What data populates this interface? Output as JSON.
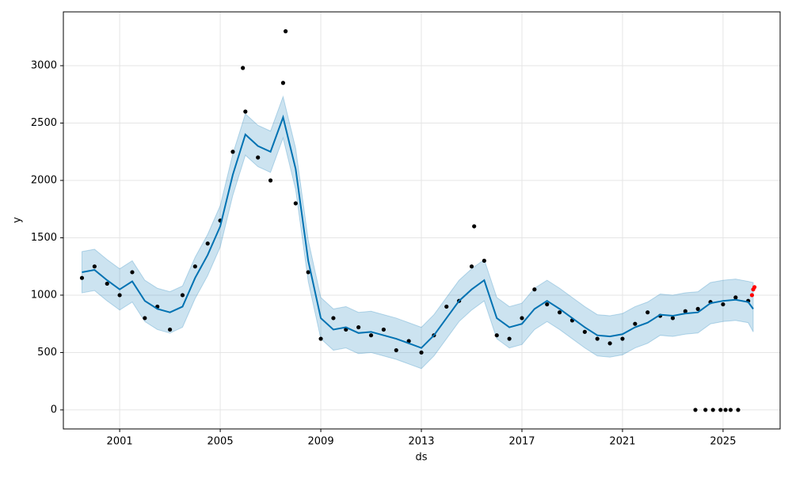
{
  "chart_data": {
    "type": "forecast",
    "x_label": "ds",
    "y_label": "y",
    "xlim": [
      1998.76,
      2027.27
    ],
    "ylim": [
      -166,
      3469
    ],
    "xticks": [
      2001,
      2005,
      2009,
      2013,
      2017,
      2021,
      2025
    ],
    "yticks": [
      0,
      500,
      1000,
      1500,
      2000,
      2500,
      3000
    ],
    "grid": true,
    "observations": {
      "color": "#000000",
      "x": [
        1999.5,
        2000.0,
        2000.5,
        2001.0,
        2001.5,
        2002.0,
        2002.5,
        2003.0,
        2003.5,
        2004.0,
        2004.5,
        2005.0,
        2005.5,
        2006.0,
        2006.5,
        2007.0,
        2007.5,
        2008.0,
        2008.5,
        2009.0,
        2009.5,
        2010.0,
        2010.5,
        2011.0,
        2011.5,
        2012.0,
        2012.5,
        2013.0,
        2013.5,
        2014.0,
        2014.5,
        2015.0,
        2015.5,
        2016.0,
        2016.5,
        2017.0,
        2017.5,
        2018.0,
        2018.5,
        2019.0,
        2019.5,
        2020.0,
        2020.5,
        2021.0,
        2021.5,
        2022.0,
        2022.5,
        2023.0,
        2023.5,
        2024.0,
        2024.5,
        2025.0,
        2025.5,
        2026.0,
        2007.6,
        2015.1,
        2005.9,
        2023.9,
        2024.3,
        2024.6,
        2024.9,
        2025.1,
        2025.3,
        2025.6
      ],
      "values": [
        1150,
        1250,
        1100,
        1000,
        1200,
        800,
        900,
        700,
        1000,
        1250,
        1450,
        1650,
        2250,
        2600,
        2200,
        2000,
        2850,
        1800,
        1200,
        620,
        800,
        700,
        720,
        650,
        700,
        520,
        600,
        500,
        650,
        900,
        950,
        1250,
        1300,
        650,
        620,
        800,
        1050,
        920,
        850,
        780,
        680,
        620,
        580,
        620,
        750,
        850,
        820,
        800,
        860,
        880,
        940,
        920,
        980,
        950,
        3300,
        1600,
        2980,
        0,
        0,
        0,
        0,
        0,
        0,
        0
      ]
    },
    "forecast": {
      "color": "#0072b2",
      "x": [
        1999.5,
        2000.0,
        2000.5,
        2001.0,
        2001.5,
        2002.0,
        2002.5,
        2003.0,
        2003.5,
        2004.0,
        2004.5,
        2005.0,
        2005.5,
        2006.0,
        2006.5,
        2007.0,
        2007.5,
        2008.0,
        2008.5,
        2009.0,
        2009.5,
        2010.0,
        2010.5,
        2011.0,
        2011.5,
        2012.0,
        2012.5,
        2013.0,
        2013.5,
        2014.0,
        2014.5,
        2015.0,
        2015.5,
        2016.0,
        2016.5,
        2017.0,
        2017.5,
        2018.0,
        2018.5,
        2019.0,
        2019.5,
        2020.0,
        2020.5,
        2021.0,
        2021.5,
        2022.0,
        2022.5,
        2023.0,
        2023.5,
        2024.0,
        2024.5,
        2025.0,
        2025.5,
        2026.0,
        2026.2
      ],
      "values": [
        1200,
        1220,
        1130,
        1050,
        1120,
        950,
        880,
        850,
        900,
        1150,
        1350,
        1600,
        2050,
        2400,
        2300,
        2250,
        2550,
        2100,
        1300,
        800,
        700,
        720,
        670,
        680,
        650,
        620,
        580,
        540,
        650,
        800,
        950,
        1050,
        1130,
        800,
        720,
        750,
        880,
        950,
        880,
        800,
        720,
        650,
        640,
        660,
        720,
        760,
        830,
        820,
        840,
        850,
        930,
        950,
        960,
        940,
        880
      ],
      "lower": [
        1020,
        1040,
        950,
        870,
        940,
        770,
        700,
        670,
        720,
        970,
        1170,
        1420,
        1870,
        2220,
        2120,
        2070,
        2370,
        1920,
        1120,
        620,
        520,
        540,
        490,
        500,
        470,
        440,
        400,
        360,
        470,
        620,
        770,
        870,
        950,
        620,
        540,
        570,
        700,
        770,
        700,
        620,
        540,
        470,
        460,
        480,
        540,
        580,
        650,
        640,
        660,
        670,
        750,
        770,
        780,
        760,
        680
      ],
      "upper": [
        1380,
        1400,
        1310,
        1230,
        1300,
        1130,
        1060,
        1030,
        1080,
        1330,
        1530,
        1780,
        2230,
        2580,
        2480,
        2430,
        2730,
        2280,
        1480,
        980,
        880,
        900,
        850,
        860,
        830,
        800,
        760,
        720,
        830,
        980,
        1130,
        1230,
        1310,
        980,
        900,
        930,
        1060,
        1130,
        1060,
        980,
        900,
        830,
        820,
        840,
        900,
        940,
        1010,
        1000,
        1020,
        1030,
        1110,
        1130,
        1140,
        1120,
        1110
      ]
    },
    "future": {
      "color": "#ff0000",
      "x": [
        2026.15,
        2026.2,
        2026.25
      ],
      "values": [
        1000,
        1050,
        1070
      ]
    }
  }
}
